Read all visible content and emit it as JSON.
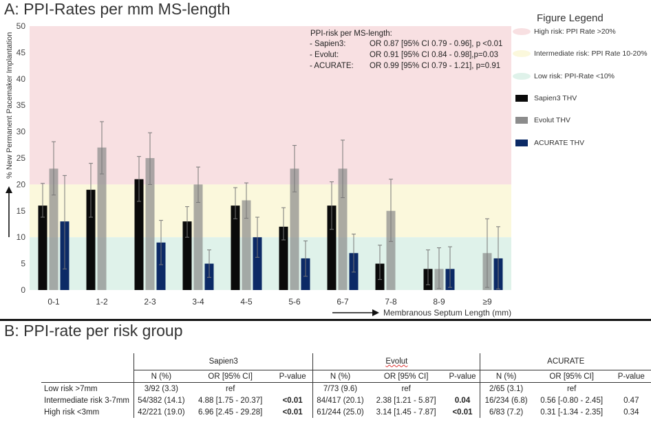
{
  "panel_a_title": "A: PPI-Rates per mm MS-length",
  "panel_b_title": "B: PPI-rate per risk group",
  "colors": {
    "high_band": "#f8e0e2",
    "intermediate_band": "#fbf8dc",
    "low_band": "#dff2ea",
    "sapien3": "#0a0a0a",
    "evolut": "#8c8c8c",
    "acurate": "#0c2a66"
  },
  "chart_data": {
    "type": "bar",
    "title": "A: PPI-Rates per mm MS-length",
    "ylabel": "% New Permanent Pacemaker Implantation",
    "xlabel": "Membranous Septum Length (mm)",
    "ylim": [
      0,
      50
    ],
    "yticks": [
      "0",
      "5",
      "10",
      "15",
      "20",
      "25",
      "30",
      "35",
      "40",
      "45",
      "50"
    ],
    "categories": [
      "0-1",
      "1-2",
      "2-3",
      "3-4",
      "4-5",
      "5-6",
      "6-7",
      "7-8",
      "8-9",
      "≥9"
    ],
    "series": [
      {
        "name": "Sapien3 THV",
        "values": [
          16,
          19,
          21,
          13,
          16,
          12,
          16,
          5,
          4,
          null
        ],
        "err_low": [
          13.8,
          13.8,
          16.8,
          10,
          13.5,
          9.5,
          11.5,
          2,
          1,
          null
        ],
        "err_high": [
          20.2,
          24,
          25.3,
          15.8,
          19.4,
          15.6,
          20.5,
          8.5,
          7.6,
          null
        ]
      },
      {
        "name": "Evolut THV",
        "values": [
          23,
          27,
          25,
          20,
          17,
          23,
          23,
          15,
          4,
          7
        ],
        "err_low": [
          18,
          22,
          20,
          16.6,
          13.6,
          18.6,
          17.5,
          9.2,
          0.3,
          0.5
        ],
        "err_high": [
          28.1,
          31.9,
          29.8,
          23.3,
          20.3,
          27.4,
          28.4,
          21,
          8,
          13.5
        ]
      },
      {
        "name": "ACURATE THV",
        "values": [
          13,
          null,
          9,
          5,
          10,
          6,
          7,
          null,
          4,
          6
        ],
        "err_low": [
          4,
          null,
          4.8,
          2.4,
          6.2,
          2.6,
          3.4,
          null,
          0.5,
          0.2
        ],
        "err_high": [
          21.7,
          null,
          13.2,
          7.6,
          13.8,
          9.3,
          10.6,
          null,
          8.2,
          12
        ]
      }
    ],
    "bands": [
      {
        "name": "High risk",
        "from": 20,
        "to": 50
      },
      {
        "name": "Intermediate risk",
        "from": 10,
        "to": 20
      },
      {
        "name": "Low risk",
        "from": 0,
        "to": 10
      }
    ],
    "annotation": {
      "header": "PPI-risk per MS-length:",
      "rows": [
        {
          "label": "- Sapien3:",
          "value": "OR 0.87 [95% CI 0.79 - 0.96], p <0.01"
        },
        {
          "label": "- Evolut:",
          "value": "OR 0.91 [95% CI 0.84 - 0.98],p=0.03"
        },
        {
          "label": "- ACURATE:",
          "value": "OR 0.99 [95% CI 0.79 - 1.21], p=0.91"
        }
      ]
    },
    "legend": {
      "title": "Figure Legend",
      "position": "right",
      "items": [
        {
          "label": "High risk: PPI Rate >20%",
          "key": "high_band"
        },
        {
          "label": "Intermediate risk: PPI Rate 10-20%",
          "key": "intermediate_band"
        },
        {
          "label": "Low risk: PPI-Rate <10%",
          "key": "low_band"
        },
        {
          "label": "Sapien3 THV",
          "key": "sapien3"
        },
        {
          "label": "Evolut THV",
          "key": "evolut"
        },
        {
          "label": "ACURATE THV",
          "key": "acurate"
        }
      ]
    }
  },
  "table": {
    "groups": [
      "Sapien3",
      "Evolut",
      "ACURATE"
    ],
    "columns": [
      "N (%)",
      "OR [95% CI]",
      "P-value"
    ],
    "rows": [
      {
        "label": "Low risk >7mm",
        "cells": [
          "3/92 (3.3)",
          "ref",
          "",
          "7/73 (9.6)",
          "ref",
          "",
          "2/65 (3.1)",
          "ref",
          ""
        ]
      },
      {
        "label": "Intermediate risk 3-7mm",
        "cells": [
          "54/382 (14.1)",
          "4.88 [1.75 - 20.37]",
          "<0.01",
          "84/417 (20.1)",
          "2.38 [1.21 - 5.87]",
          "0.04",
          "16/234 (6.8)",
          "0.56 [-0.80 - 2.45]",
          "0.47"
        ]
      },
      {
        "label": "High risk <3mm",
        "cells": [
          "42/221 (19.0)",
          "6.96 [2.45 - 29.28]",
          "<0.01",
          "61/244 (25.0)",
          "3.14 [1.45 - 7.87]",
          "<0.01",
          "6/83 (7.2)",
          "0.31 [-1.34 - 2.35]",
          "0.34"
        ]
      }
    ]
  }
}
